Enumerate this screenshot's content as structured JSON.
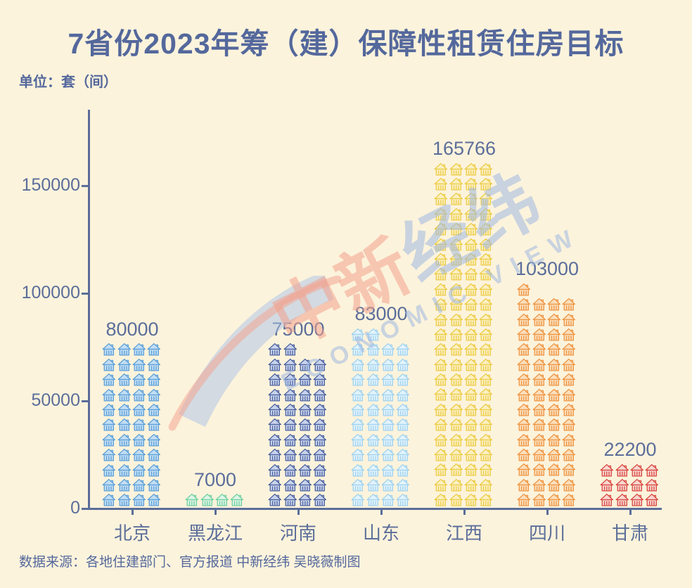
{
  "page": {
    "title": "7省份2023年筹（建）保障性租赁住房目标",
    "unit_label": "单位：套（间）",
    "source": "数据来源：各地住建部门、官方报道 中新经纬 吴晓薇制图"
  },
  "watermark": {
    "cn_first": "中新",
    "cn_second": "经纬",
    "en": "ECONOMIC VIEW"
  },
  "colors": {
    "background": "#FCF3DC",
    "text": "#54689C",
    "axis": "#5B6E9A",
    "watermark_salmon": "#F2A795",
    "watermark_blue": "#A9BFE4"
  },
  "chart_data": {
    "type": "bar",
    "variant": "pictogram of stacked house icons, 4 per row",
    "title": "7省份2023年筹（建）保障性租赁住房目标",
    "ylabel": "单位：套（间）",
    "categories": [
      "北京",
      "黑龙江",
      "河南",
      "山东",
      "江西",
      "四川",
      "甘肃"
    ],
    "values": [
      80000,
      7000,
      75000,
      83000,
      165766,
      103000,
      22200
    ],
    "value_labels": [
      "80000",
      "7000",
      "75000",
      "83000",
      "165766",
      "103000",
      "22200"
    ],
    "yticks": [
      0,
      50000,
      100000,
      150000
    ],
    "ytick_labels": [
      "0",
      "50000",
      "100000",
      "150000"
    ],
    "ylim": [
      0,
      185000
    ],
    "grid": false,
    "legend": "none",
    "icon": "house",
    "unit_per_house": 1800,
    "houses_per_row": 4,
    "series_colors": [
      {
        "category": "北京",
        "stroke": "#5C9FD6",
        "fill": "#C2DEF5"
      },
      {
        "category": "黑龙江",
        "stroke": "#6FCF9D",
        "fill": "#DDF5E8"
      },
      {
        "category": "河南",
        "stroke": "#4A619D",
        "fill": "#C9D3EC"
      },
      {
        "category": "山东",
        "stroke": "#9FD2EE",
        "fill": "#E2F3FC"
      },
      {
        "category": "江西",
        "stroke": "#EDCB44",
        "fill": "#FAF0C2"
      },
      {
        "category": "四川",
        "stroke": "#EE9441",
        "fill": "#FBDFBC"
      },
      {
        "category": "甘肃",
        "stroke": "#D8463E",
        "fill": "#F8D7D1"
      }
    ]
  }
}
